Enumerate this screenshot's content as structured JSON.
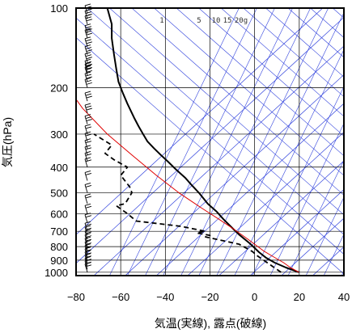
{
  "chart_data": {
    "type": "line",
    "title": "",
    "xlabel": "気温(実線), 露点(破線)",
    "ylabel": "気圧(hPa)",
    "xlim": [
      -80,
      40
    ],
    "ylim": [
      1030,
      100
    ],
    "y_scale": "log",
    "x_ticks": [
      "−80",
      "−60",
      "−40",
      "−20",
      "0",
      "20",
      "40"
    ],
    "x_tick_values": [
      -80,
      -60,
      -40,
      -20,
      0,
      20,
      40
    ],
    "y_ticks": [
      "100",
      "200",
      "300",
      "400",
      "500",
      "600",
      "700",
      "800",
      "900",
      "1000"
    ],
    "y_tick_values": [
      100,
      200,
      300,
      400,
      500,
      600,
      700,
      800,
      900,
      1000
    ],
    "mixing_ratio_labels": [
      "1",
      "5",
      "10",
      "15",
      "20g"
    ],
    "mixing_ratio_values": [
      1,
      5,
      10,
      15,
      20
    ],
    "colors": {
      "temperature": "#000000",
      "dewpoint": "#000000",
      "parcel": "#e00000",
      "guides": "#3344dd",
      "grid": "#000000"
    },
    "series": [
      {
        "key": "temperature",
        "style": "solid",
        "points": [
          [
            19.8,
            1000
          ],
          [
            14,
            960
          ],
          [
            9,
            920
          ],
          [
            5,
            880
          ],
          [
            2,
            840
          ],
          [
            -2,
            780
          ],
          [
            -7,
            720
          ],
          [
            -10,
            680
          ],
          [
            -14,
            630
          ],
          [
            -17,
            590
          ],
          [
            -21,
            550
          ],
          [
            -25,
            500
          ],
          [
            -28,
            470
          ],
          [
            -31,
            440
          ],
          [
            -35,
            410
          ],
          [
            -39,
            380
          ],
          [
            -42,
            360
          ],
          [
            -45,
            340
          ],
          [
            -48,
            320
          ],
          [
            -50,
            300
          ],
          [
            -52,
            280
          ],
          [
            -54,
            260
          ],
          [
            -57,
            230
          ],
          [
            -59,
            210
          ],
          [
            -61,
            190
          ],
          [
            -62,
            170
          ],
          [
            -63,
            150
          ],
          [
            -64,
            130
          ],
          [
            -64,
            115
          ],
          [
            -66,
            100
          ]
        ]
      },
      {
        "key": "dewpoint",
        "style": "dashed",
        "points": [
          [
            11.8,
            1000
          ],
          [
            8,
            950
          ],
          [
            4,
            900
          ],
          [
            0.8,
            862
          ],
          [
            -1,
            835
          ],
          [
            -5,
            800
          ],
          [
            -7,
            783
          ],
          [
            -22,
            735
          ],
          [
            -20,
            725
          ],
          [
            -26,
            710
          ],
          [
            -22,
            700
          ],
          [
            -33,
            670
          ],
          [
            -53,
            640
          ],
          [
            -57,
            600
          ],
          [
            -62,
            560
          ],
          [
            -58,
            550
          ],
          [
            -55,
            500
          ],
          [
            -56,
            475
          ],
          [
            -60,
            430
          ],
          [
            -57,
            400
          ],
          [
            -63,
            375
          ],
          [
            -67,
            355
          ],
          [
            -64,
            330
          ],
          [
            -72,
            300
          ]
        ]
      },
      {
        "key": "parcel",
        "style": "solid",
        "points": [
          [
            19.8,
            1000
          ],
          [
            16,
            960
          ],
          [
            13,
            920
          ],
          [
            8,
            870
          ],
          [
            4,
            830
          ],
          [
            -3,
            750
          ],
          [
            -9,
            690
          ],
          [
            -16,
            630
          ],
          [
            -24,
            570
          ],
          [
            -34,
            500
          ],
          [
            -44,
            430
          ],
          [
            -55,
            360
          ],
          [
            -66,
            300
          ],
          [
            -77,
            240
          ],
          [
            -82,
            210
          ]
        ]
      }
    ],
    "wind_barb_levels": [
      1000,
      975,
      950,
      925,
      900,
      875,
      850,
      825,
      800,
      775,
      750,
      725,
      700,
      650,
      600,
      550,
      500,
      450,
      400,
      380,
      360,
      340,
      320,
      300,
      275,
      250,
      225,
      200,
      190,
      180,
      175,
      170,
      160,
      150,
      140,
      130,
      125,
      115,
      110,
      105
    ]
  }
}
